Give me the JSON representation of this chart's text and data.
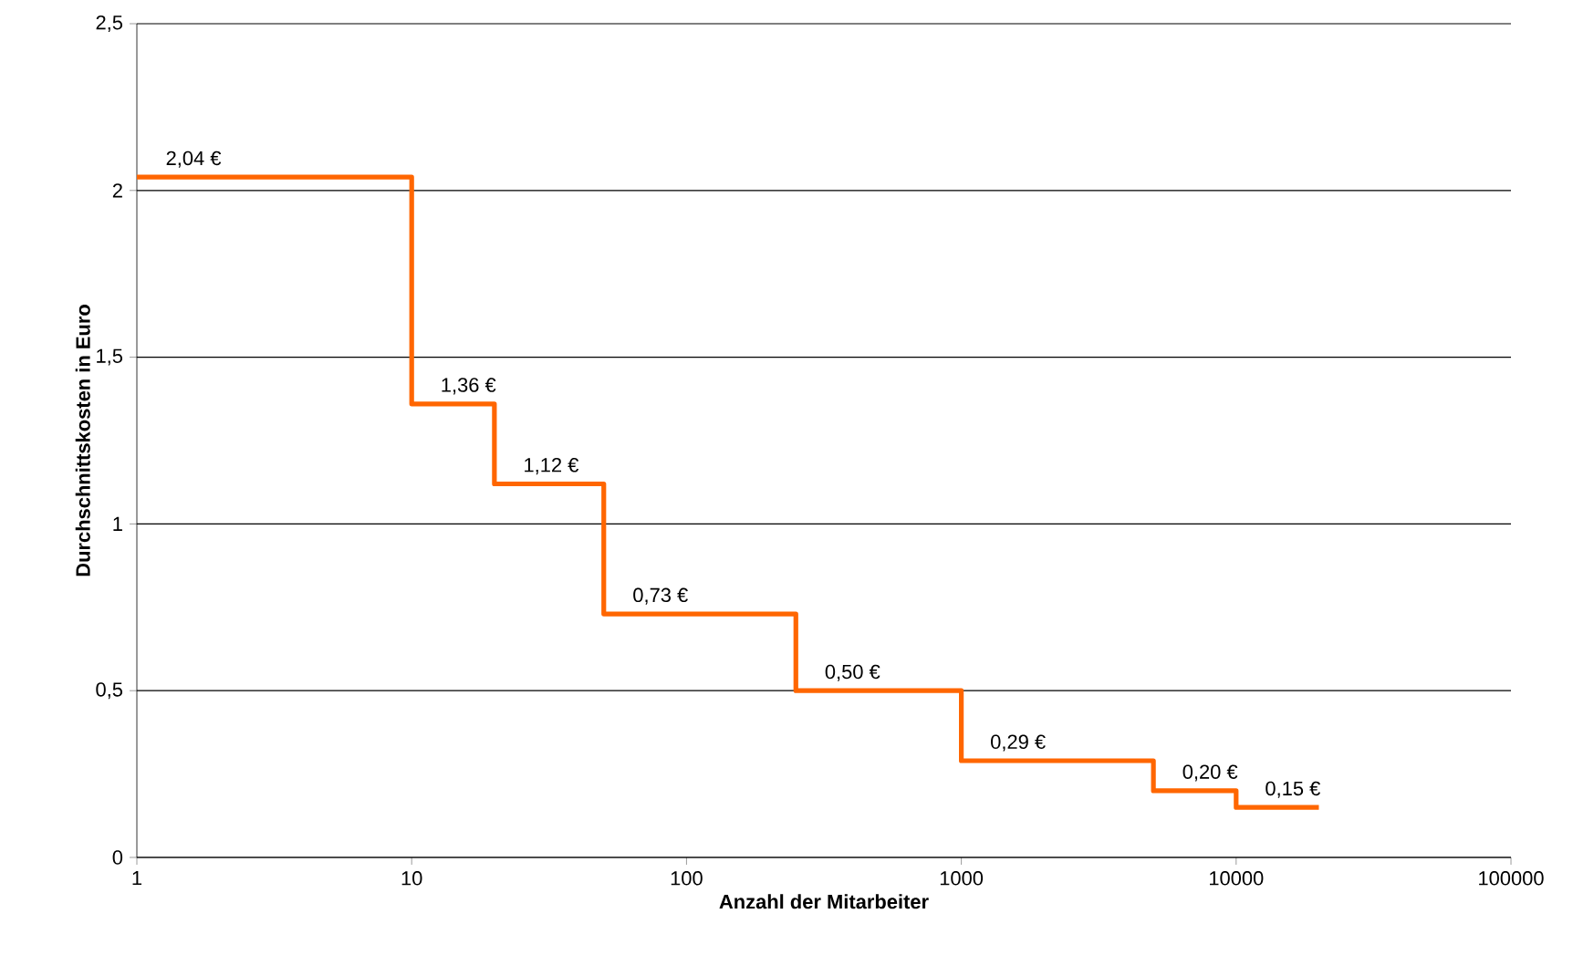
{
  "chart_data": {
    "type": "step",
    "xlabel": "Anzahl der Mitarbeiter",
    "ylabel": "Durchschnittskosten in Euro",
    "x": [
      1,
      10,
      20,
      50,
      250,
      1000,
      5000,
      10000,
      20000
    ],
    "values": [
      2.04,
      1.36,
      1.12,
      0.73,
      0.5,
      0.29,
      0.2,
      0.15,
      0.15
    ],
    "value_labels": [
      "2,04 €",
      "1,36 €",
      "1,12 €",
      "0,73 €",
      "0,50 €",
      "0,29 €",
      "0,20 €",
      "0,15 €",
      null
    ],
    "color": "#ff6600",
    "log": "x",
    "grid": "y",
    "marker": "none",
    "line_style": "solid",
    "xlim": [
      1,
      100000
    ],
    "xticks": [
      1,
      10,
      100,
      1000,
      10000,
      100000
    ],
    "ylim": [
      0,
      2.5
    ],
    "yticks": [
      {
        "value": 0,
        "label": "0"
      },
      {
        "value": 0.5,
        "label": "0,5"
      },
      {
        "value": 1,
        "label": "1"
      },
      {
        "value": 1.5,
        "label": "1,5"
      },
      {
        "value": 2,
        "label": "2"
      },
      {
        "value": 2.5,
        "label": "2,5"
      }
    ]
  }
}
